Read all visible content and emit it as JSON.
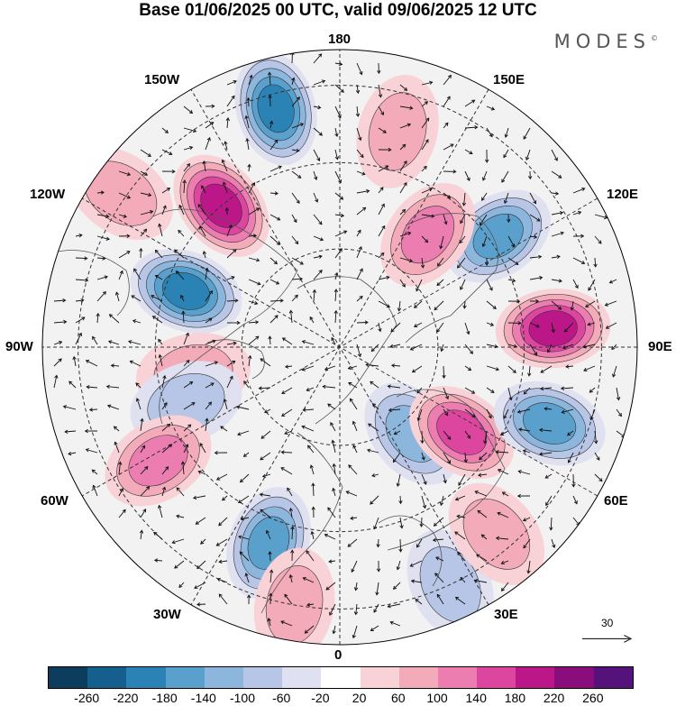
{
  "title": "Base 01/06/2025 00 UTC, valid 09/06/2025 12 UTC",
  "brand": "MODES",
  "brand_mark": "©",
  "longitude_labels": {
    "top": "180",
    "bottom": "0",
    "left": "90W",
    "right": "90E",
    "nw1": "150W",
    "nw2": "120W",
    "ne1": "150E",
    "ne2": "120E",
    "sw1": "60W",
    "sw2": "30W",
    "se1": "60E",
    "se2": "30E"
  },
  "vector_scale": {
    "value": "30",
    "icon": "arrow-right-icon"
  },
  "colorbar": {
    "colors": [
      "#0d3d5c",
      "#155f8e",
      "#2a82b5",
      "#5aa0cc",
      "#8cb6dc",
      "#b7c6e6",
      "#dfe1f0",
      "#ffffff",
      "#f8d2d6",
      "#f3abba",
      "#ec7db1",
      "#dc469f",
      "#bb1788",
      "#8a0d7c",
      "#55127a"
    ],
    "ticks": [
      "-260",
      "-220",
      "-180",
      "-140",
      "-100",
      "-60",
      "-20",
      "20",
      "60",
      "100",
      "140",
      "180",
      "220",
      "260"
    ]
  },
  "anomalies": [
    {
      "lon": -165,
      "r": 0.83,
      "value": -180
    },
    {
      "lon": -140,
      "r": 0.62,
      "value": 180
    },
    {
      "lon": -110,
      "r": 0.55,
      "value": -180
    },
    {
      "lon": -125,
      "r": 0.9,
      "value": 60
    },
    {
      "lon": -80,
      "r": 0.5,
      "value": 60
    },
    {
      "lon": -70,
      "r": 0.55,
      "value": -60
    },
    {
      "lon": -58,
      "r": 0.72,
      "value": 100
    },
    {
      "lon": -20,
      "r": 0.7,
      "value": -140
    },
    {
      "lon": -10,
      "r": 0.88,
      "value": 60
    },
    {
      "lon": 40,
      "r": 0.38,
      "value": -100
    },
    {
      "lon": 55,
      "r": 0.5,
      "value": 140
    },
    {
      "lon": 70,
      "r": 0.75,
      "value": -140
    },
    {
      "lon": 95,
      "r": 0.72,
      "value": 180
    },
    {
      "lon": 125,
      "r": 0.65,
      "value": -140
    },
    {
      "lon": 142,
      "r": 0.48,
      "value": 100
    },
    {
      "lon": 165,
      "r": 0.75,
      "value": 60
    },
    {
      "lon": 25,
      "r": 0.88,
      "value": -60
    },
    {
      "lon": 40,
      "r": 0.82,
      "value": 60
    }
  ]
}
